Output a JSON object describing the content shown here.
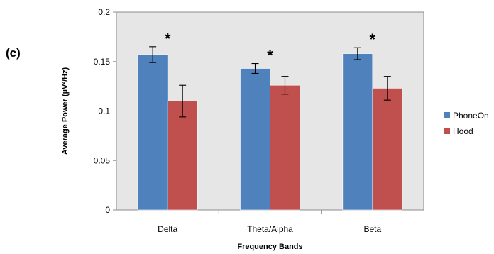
{
  "panel_label": "(c)",
  "chart_data": {
    "type": "bar",
    "categories": [
      "Delta",
      "Theta/Alpha",
      "Beta"
    ],
    "series": [
      {
        "name": "PhoneOn",
        "color": "#4f81bd",
        "values": [
          0.157,
          0.143,
          0.158
        ],
        "errors": [
          0.008,
          0.005,
          0.006
        ]
      },
      {
        "name": "Hood",
        "color": "#c0504d",
        "values": [
          0.11,
          0.126,
          0.123
        ],
        "errors": [
          0.016,
          0.009,
          0.012
        ]
      }
    ],
    "annotations": [
      "*",
      "*",
      "*"
    ],
    "xlabel": "Frequency Bands",
    "ylabel": "Average Power (µV²/Hz)",
    "ylim": [
      0,
      0.2
    ],
    "yticks": [
      0,
      0.05,
      0.1,
      0.15,
      0.2
    ],
    "ytick_labels": [
      "0",
      "0.05",
      "0.1",
      "0.15",
      "0.2"
    ],
    "grid": false,
    "legend_position": "right"
  }
}
